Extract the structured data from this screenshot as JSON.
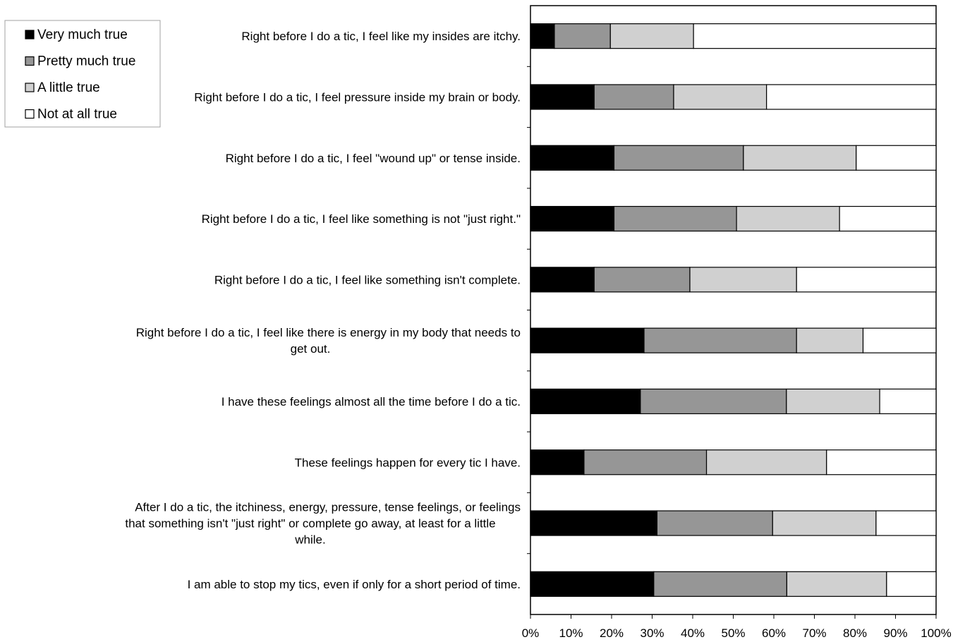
{
  "chart_data": {
    "type": "bar",
    "orientation": "horizontal",
    "stacked": "percent",
    "title": "",
    "xlabel": "",
    "ylabel": "",
    "xlim": [
      0,
      100
    ],
    "x_ticks": [
      "0%",
      "10%",
      "20%",
      "30%",
      "40%",
      "50%",
      "60%",
      "70%",
      "80%",
      "90%",
      "100%"
    ],
    "grid": false,
    "legend_position": "top-left",
    "categories": [
      "Right before I do a tic, I feel like my insides are itchy.",
      "Right before I do a tic, I feel pressure inside my brain or body.",
      "Right before I do a tic, I feel \"wound up\" or tense inside.",
      "Right before I do a tic, I feel like something is not \"just right.\"",
      "Right before I do a tic, I feel like something isn't complete.",
      "Right before I do a tic, I feel like there is energy in my body that needs to get out.",
      "I have these feelings almost all the time before I do a tic.",
      "These feelings happen for every tic I have.",
      "After I do a tic, the itchiness, energy, pressure, tense feelings, or feelings that something isn't \"just right\" or complete go away, at least for a little while.",
      "I am able to stop my tics, even if only for a short period of time."
    ],
    "category_lines": [
      [
        "Right before I do a tic, I feel like my insides are itchy."
      ],
      [
        "Right before I do a tic, I feel pressure inside my brain or body."
      ],
      [
        "Right before I do a tic, I feel \"wound up\" or tense inside."
      ],
      [
        "Right before I do a tic, I feel like something is not \"just right.\""
      ],
      [
        "Right before I do a tic, I feel like something isn't complete."
      ],
      [
        "Right before I do a tic, I feel like there is energy in my body that needs to",
        "get out."
      ],
      [
        "I have these feelings almost all the time before I do a tic."
      ],
      [
        "These feelings happen for every tic I have."
      ],
      [
        "After I do a tic, the itchiness, energy, pressure, tense feelings, or feelings",
        "that something isn't \"just right\" or complete go away, at least for a little",
        "while."
      ],
      [
        "I am able to stop my tics, even if only for a short period of time."
      ]
    ],
    "series": [
      {
        "name": "Very much true",
        "color": "#000000",
        "values": [
          5.9,
          15.7,
          20.6,
          20.6,
          15.7,
          28.0,
          27.1,
          13.2,
          31.2,
          30.4
        ]
      },
      {
        "name": "Pretty much true",
        "color": "#969696",
        "values": [
          13.8,
          19.6,
          31.9,
          30.2,
          23.6,
          37.6,
          36.0,
          30.2,
          28.5,
          32.8
        ]
      },
      {
        "name": "A little true",
        "color": "#d0d0d0",
        "values": [
          20.5,
          22.9,
          27.8,
          25.4,
          26.3,
          16.4,
          23.0,
          29.6,
          25.5,
          24.6
        ]
      },
      {
        "name": "Not at all true",
        "color": "#ffffff",
        "values": [
          59.8,
          41.8,
          19.7,
          23.8,
          34.4,
          18.0,
          13.9,
          27.0,
          14.8,
          12.2
        ]
      }
    ]
  }
}
